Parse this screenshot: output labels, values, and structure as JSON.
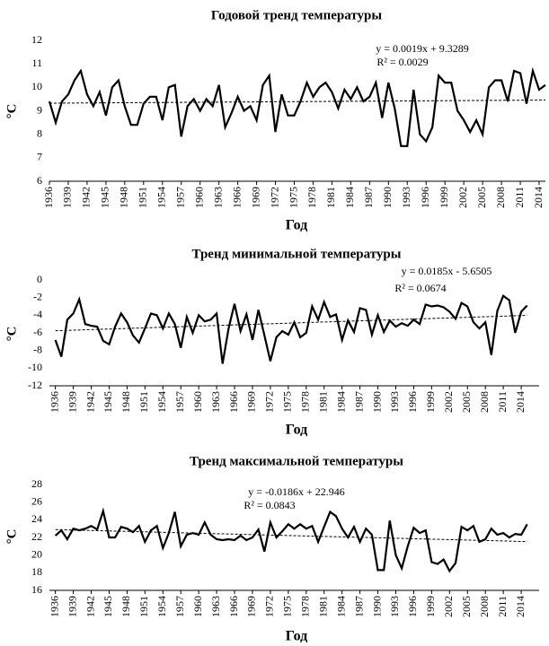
{
  "chart_data": [
    {
      "type": "line",
      "title": "Годовой тренд температуры",
      "xlabel": "Год",
      "ylabel": "°C",
      "annotations": [
        "y = 0.0019x + 9.3289",
        "R² = 0.0029"
      ],
      "x": [
        1936,
        1937,
        1938,
        1939,
        1940,
        1941,
        1942,
        1943,
        1944,
        1945,
        1946,
        1947,
        1948,
        1949,
        1950,
        1951,
        1952,
        1953,
        1954,
        1955,
        1956,
        1957,
        1958,
        1959,
        1960,
        1961,
        1962,
        1963,
        1964,
        1965,
        1966,
        1967,
        1968,
        1969,
        1970,
        1971,
        1972,
        1973,
        1974,
        1975,
        1976,
        1977,
        1978,
        1979,
        1980,
        1981,
        1982,
        1983,
        1984,
        1985,
        1986,
        1987,
        1988,
        1989,
        1990,
        1991,
        1992,
        1993,
        1994,
        1995,
        1996,
        1997,
        1998,
        1999,
        2000,
        2001,
        2002,
        2003,
        2004,
        2005,
        2006,
        2007,
        2008,
        2009,
        2010,
        2011,
        2012,
        2013,
        2014,
        2015
      ],
      "values": [
        9.4,
        8.5,
        9.4,
        9.7,
        10.3,
        10.7,
        9.7,
        9.2,
        9.8,
        8.8,
        10.0,
        10.3,
        9.2,
        8.4,
        8.4,
        9.3,
        9.6,
        9.6,
        8.6,
        10.0,
        10.1,
        7.9,
        9.2,
        9.5,
        9.0,
        9.5,
        9.2,
        10.1,
        8.3,
        8.9,
        9.6,
        9.0,
        9.2,
        8.6,
        10.1,
        10.5,
        8.1,
        9.7,
        8.8,
        8.8,
        9.4,
        10.2,
        9.6,
        10.0,
        10.2,
        9.8,
        9.1,
        9.9,
        9.5,
        10.0,
        9.4,
        9.6,
        10.2,
        8.7,
        10.2,
        9.1,
        7.5,
        7.5,
        9.9,
        8.0,
        7.7,
        8.3,
        10.5,
        10.2,
        10.2,
        9.0,
        8.6,
        8.1,
        8.6,
        8.0,
        10.0,
        10.3,
        10.3,
        9.4,
        10.7,
        10.6,
        9.3,
        10.7,
        9.9,
        10.1
      ],
      "color": "#000000",
      "trendline": true,
      "grid": false,
      "xlim": [
        1936,
        2015
      ],
      "xticks": [
        1936,
        1939,
        1942,
        1945,
        1948,
        1951,
        1954,
        1957,
        1960,
        1963,
        1966,
        1969,
        1972,
        1975,
        1978,
        1981,
        1984,
        1987,
        1990,
        1993,
        1996,
        1999,
        2002,
        2005,
        2008,
        2011,
        2014
      ],
      "ylim": [
        6,
        12
      ],
      "yticks": [
        6,
        7,
        8,
        9,
        10,
        11,
        12
      ]
    },
    {
      "type": "line",
      "title": "Тренд минимальной температуры",
      "xlabel": "Год",
      "ylabel": "°C",
      "annotations": [
        "y = 0.0185x - 5.6505",
        "R² = 0.0674"
      ],
      "x": [
        1936,
        1937,
        1938,
        1939,
        1940,
        1941,
        1942,
        1943,
        1944,
        1945,
        1946,
        1947,
        1948,
        1949,
        1950,
        1951,
        1952,
        1953,
        1954,
        1955,
        1956,
        1957,
        1958,
        1959,
        1960,
        1961,
        1962,
        1963,
        1964,
        1965,
        1966,
        1967,
        1968,
        1969,
        1970,
        1971,
        1972,
        1973,
        1974,
        1975,
        1976,
        1977,
        1978,
        1979,
        1980,
        1981,
        1982,
        1983,
        1984,
        1985,
        1986,
        1987,
        1988,
        1989,
        1990,
        1991,
        1992,
        1993,
        1994,
        1995,
        1996,
        1997,
        1998,
        1999,
        2000,
        2001,
        2002,
        2003,
        2004,
        2005,
        2006,
        2007,
        2008,
        2009,
        2010,
        2011,
        2012,
        2013,
        2014,
        2015
      ],
      "values": [
        -6.8,
        -8.7,
        -4.5,
        -3.8,
        -2.2,
        -5.0,
        -5.2,
        -5.3,
        -6.9,
        -7.3,
        -5.3,
        -3.8,
        -4.8,
        -6.3,
        -7.1,
        -5.5,
        -3.8,
        -4.0,
        -5.5,
        -3.8,
        -5.0,
        -7.7,
        -4.2,
        -6.0,
        -4.0,
        -4.7,
        -4.5,
        -3.8,
        -9.5,
        -5.5,
        -2.7,
        -5.8,
        -3.9,
        -6.8,
        -3.4,
        -6.3,
        -9.2,
        -6.5,
        -5.8,
        -6.2,
        -4.8,
        -6.5,
        -6.0,
        -3.0,
        -4.5,
        -2.5,
        -4.2,
        -3.9,
        -6.8,
        -4.6,
        -5.9,
        -3.2,
        -3.4,
        -6.2,
        -4.0,
        -5.9,
        -4.6,
        -5.3,
        -4.9,
        -5.2,
        -4.5,
        -5.0,
        -2.8,
        -3.0,
        -2.9,
        -3.1,
        -3.6,
        -4.4,
        -2.6,
        -3.0,
        -4.8,
        -5.5,
        -4.8,
        -8.5,
        -3.5,
        -1.8,
        -2.3,
        -6.0,
        -3.6,
        -2.9
      ],
      "color": "#000000",
      "trendline": true,
      "grid": false,
      "xlim": [
        1935,
        2017
      ],
      "xticks": [
        1936,
        1939,
        1942,
        1945,
        1948,
        1951,
        1954,
        1957,
        1960,
        1963,
        1966,
        1969,
        1972,
        1975,
        1978,
        1981,
        1984,
        1987,
        1990,
        1993,
        1996,
        1999,
        2002,
        2005,
        2008,
        2011,
        2014
      ],
      "ylim": [
        -12,
        0
      ],
      "yticks": [
        -12,
        -10,
        -8,
        -6,
        -4,
        -2,
        0
      ]
    },
    {
      "type": "line",
      "title": "Тренд максимальной температуры",
      "xlabel": "Год",
      "ylabel": "°C",
      "annotations": [
        "y = -0.0186x + 22.946",
        "R² = 0.0843"
      ],
      "x": [
        1936,
        1937,
        1938,
        1939,
        1940,
        1941,
        1942,
        1943,
        1944,
        1945,
        1946,
        1947,
        1948,
        1949,
        1950,
        1951,
        1952,
        1953,
        1954,
        1955,
        1956,
        1957,
        1958,
        1959,
        1960,
        1961,
        1962,
        1963,
        1964,
        1965,
        1966,
        1967,
        1968,
        1969,
        1970,
        1971,
        1972,
        1973,
        1974,
        1975,
        1976,
        1977,
        1978,
        1979,
        1980,
        1981,
        1982,
        1983,
        1984,
        1985,
        1986,
        1987,
        1988,
        1989,
        1990,
        1991,
        1992,
        1993,
        1994,
        1995,
        1996,
        1997,
        1998,
        1999,
        2000,
        2001,
        2002,
        2003,
        2004,
        2005,
        2006,
        2007,
        2008,
        2009,
        2010,
        2011,
        2012,
        2013,
        2014,
        2015
      ],
      "values": [
        22.2,
        22.8,
        21.8,
        23.0,
        22.8,
        23.0,
        23.3,
        22.9,
        25.0,
        22.0,
        22.0,
        23.2,
        23.0,
        22.6,
        23.3,
        21.5,
        22.8,
        23.3,
        20.8,
        22.5,
        24.9,
        21.0,
        22.3,
        22.5,
        22.3,
        23.7,
        22.3,
        21.8,
        21.7,
        21.8,
        21.7,
        22.2,
        21.7,
        22.0,
        22.9,
        20.4,
        23.7,
        22.0,
        22.7,
        23.5,
        23.0,
        23.5,
        23.0,
        23.3,
        21.5,
        23.2,
        24.9,
        24.4,
        23.0,
        22.0,
        23.2,
        21.5,
        23.0,
        22.3,
        18.3,
        18.3,
        23.9,
        20.0,
        18.5,
        21.0,
        23.1,
        22.5,
        22.8,
        19.2,
        19.0,
        19.5,
        18.2,
        19.1,
        23.2,
        22.8,
        23.3,
        21.5,
        21.8,
        23.0,
        22.3,
        22.5,
        22.0,
        22.4,
        22.3,
        23.5
      ],
      "color": "#000000",
      "trendline": true,
      "grid": false,
      "xlim": [
        1935,
        2017
      ],
      "xticks": [
        1936,
        1939,
        1942,
        1945,
        1948,
        1951,
        1954,
        1957,
        1960,
        1963,
        1966,
        1969,
        1972,
        1975,
        1978,
        1981,
        1984,
        1987,
        1990,
        1993,
        1996,
        1999,
        2002,
        2005,
        2008,
        2011,
        2014
      ],
      "ylim": [
        16,
        28
      ],
      "yticks": [
        16,
        18,
        20,
        22,
        24,
        26,
        28
      ]
    }
  ]
}
